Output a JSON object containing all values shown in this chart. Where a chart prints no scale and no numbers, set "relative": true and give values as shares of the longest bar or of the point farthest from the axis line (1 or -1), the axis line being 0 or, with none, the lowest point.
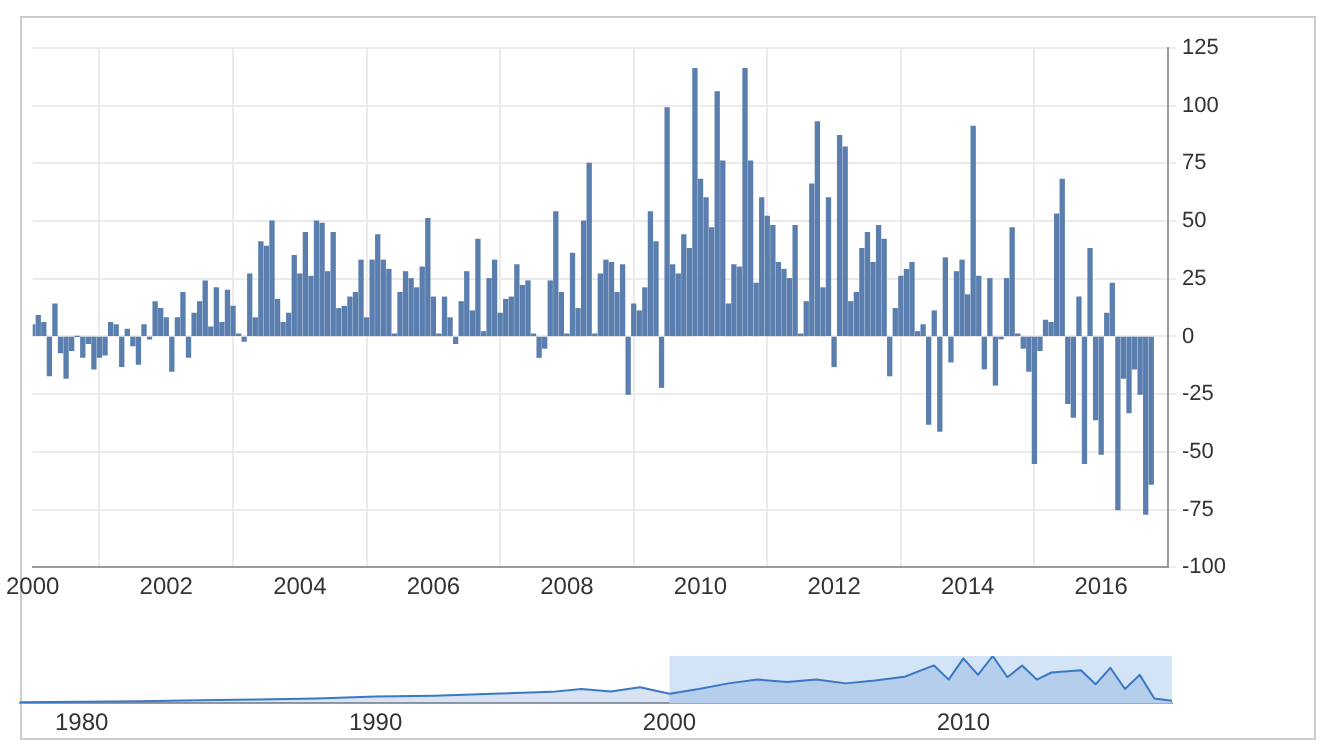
{
  "chart_data": [
    {
      "type": "bar",
      "color": "#5a7fae",
      "grid": true,
      "xlim": [
        "2000-01",
        "2017-01"
      ],
      "xticks": [
        "2000",
        "2002",
        "2004",
        "2006",
        "2008",
        "2010",
        "2012",
        "2014",
        "2016"
      ],
      "ylim": [
        -100,
        125
      ],
      "yticks": [
        -100,
        -75,
        -50,
        -25,
        0,
        25,
        50,
        75,
        100,
        125
      ],
      "x": [
        "2000-01",
        "2000-02",
        "2000-03",
        "2000-04",
        "2000-05",
        "2000-06",
        "2000-07",
        "2000-08",
        "2000-09",
        "2000-10",
        "2000-11",
        "2000-12",
        "2001-01",
        "2001-02",
        "2001-03",
        "2001-04",
        "2001-05",
        "2001-06",
        "2001-07",
        "2001-08",
        "2001-09",
        "2001-10",
        "2001-11",
        "2001-12",
        "2002-01",
        "2002-02",
        "2002-03",
        "2002-04",
        "2002-05",
        "2002-06",
        "2002-07",
        "2002-08",
        "2002-09",
        "2002-10",
        "2002-11",
        "2002-12",
        "2003-01",
        "2003-02",
        "2003-03",
        "2003-04",
        "2003-05",
        "2003-06",
        "2003-07",
        "2003-08",
        "2003-09",
        "2003-10",
        "2003-11",
        "2003-12",
        "2004-01",
        "2004-02",
        "2004-03",
        "2004-04",
        "2004-05",
        "2004-06",
        "2004-07",
        "2004-08",
        "2004-09",
        "2004-10",
        "2004-11",
        "2004-12",
        "2005-01",
        "2005-02",
        "2005-03",
        "2005-04",
        "2005-05",
        "2005-06",
        "2005-07",
        "2005-08",
        "2005-09",
        "2005-10",
        "2005-11",
        "2005-12",
        "2006-01",
        "2006-02",
        "2006-03",
        "2006-04",
        "2006-05",
        "2006-06",
        "2006-07",
        "2006-08",
        "2006-09",
        "2006-10",
        "2006-11",
        "2006-12",
        "2007-01",
        "2007-02",
        "2007-03",
        "2007-04",
        "2007-05",
        "2007-06",
        "2007-07",
        "2007-08",
        "2007-09",
        "2007-10",
        "2007-11",
        "2007-12",
        "2008-01",
        "2008-02",
        "2008-03",
        "2008-04",
        "2008-05",
        "2008-06",
        "2008-07",
        "2008-08",
        "2008-09",
        "2008-10",
        "2008-11",
        "2008-12",
        "2009-01",
        "2009-02",
        "2009-03",
        "2009-04",
        "2009-05",
        "2009-06",
        "2009-07",
        "2009-08",
        "2009-09",
        "2009-10",
        "2009-11",
        "2009-12",
        "2010-01",
        "2010-02",
        "2010-03",
        "2010-04",
        "2010-05",
        "2010-06",
        "2010-07",
        "2010-08",
        "2010-09",
        "2010-10",
        "2010-11",
        "2010-12",
        "2011-01",
        "2011-02",
        "2011-03",
        "2011-04",
        "2011-05",
        "2011-06",
        "2011-07",
        "2011-08",
        "2011-09",
        "2011-10",
        "2011-11",
        "2011-12",
        "2012-01",
        "2012-02",
        "2012-03",
        "2012-04",
        "2012-05",
        "2012-06",
        "2012-07",
        "2012-08",
        "2012-09",
        "2012-10",
        "2012-11",
        "2012-12",
        "2013-01",
        "2013-02",
        "2013-03",
        "2013-04",
        "2013-05",
        "2013-06",
        "2013-07",
        "2013-08",
        "2013-09",
        "2013-10",
        "2013-11",
        "2013-12",
        "2014-01",
        "2014-02",
        "2014-03",
        "2014-04",
        "2014-05",
        "2014-06",
        "2014-07",
        "2014-08",
        "2014-09",
        "2014-10",
        "2014-11",
        "2014-12",
        "2015-01",
        "2015-02",
        "2015-03",
        "2015-04",
        "2015-05",
        "2015-06",
        "2015-07",
        "2015-08",
        "2015-09",
        "2015-10",
        "2015-11",
        "2015-12",
        "2016-01",
        "2016-02",
        "2016-03",
        "2016-04",
        "2016-05",
        "2016-06",
        "2016-07",
        "2016-08",
        "2016-09",
        "2016-10"
      ],
      "values": [
        5,
        9,
        6,
        -17,
        14,
        -7,
        -18,
        -6,
        0,
        -9,
        -3,
        -14,
        -9,
        -8,
        6,
        5,
        -13,
        3,
        -4,
        -12,
        5,
        -1,
        15,
        12,
        8,
        -15,
        8,
        19,
        -9,
        10,
        15,
        24,
        4,
        21,
        6,
        20,
        13,
        1,
        -2,
        27,
        8,
        41,
        39,
        50,
        16,
        6,
        10,
        35,
        27,
        45,
        26,
        50,
        49,
        28,
        45,
        12,
        13,
        17,
        19,
        33,
        8,
        33,
        44,
        33,
        29,
        1,
        19,
        28,
        25,
        21,
        30,
        51,
        17,
        1,
        17,
        8,
        -3,
        15,
        28,
        11,
        42,
        2,
        25,
        33,
        10,
        16,
        17,
        31,
        22,
        24,
        1,
        -9,
        -5,
        24,
        54,
        19,
        1,
        36,
        12,
        50,
        75,
        1,
        27,
        33,
        32,
        19,
        31,
        -25,
        14,
        11,
        21,
        54,
        41,
        -22,
        99,
        31,
        27,
        44,
        38,
        116,
        68,
        60,
        47,
        106,
        76,
        14,
        31,
        30,
        116,
        76,
        23,
        60,
        52,
        48,
        32,
        29,
        25,
        48,
        1,
        15,
        66,
        93,
        21,
        60,
        -13,
        87,
        82,
        15,
        19,
        38,
        45,
        32,
        48,
        42,
        -17,
        12,
        26,
        29,
        32,
        2,
        5,
        -38,
        11,
        -41,
        34,
        -11,
        28,
        33,
        18,
        91,
        26,
        -14,
        25,
        -21,
        -1,
        25,
        47,
        1,
        -5,
        -15,
        -55,
        -6,
        7,
        6,
        53,
        68,
        -29,
        -35,
        17,
        -55,
        38,
        -36,
        -51,
        10,
        23,
        -75,
        -18,
        -33,
        -14,
        -25,
        -77,
        -64
      ]
    },
    {
      "type": "area",
      "relative": true,
      "color": "#3a78c3",
      "xlim": [
        1977.9,
        2017.1
      ],
      "xticks": [
        1980,
        1990,
        2000,
        2010
      ],
      "bands": [
        {
          "axis": "x",
          "from": 2000,
          "to": 2017.1,
          "color": "#d4e4f7"
        }
      ],
      "x": [
        1977.9,
        1980,
        1982,
        1984,
        1986,
        1988,
        1990,
        1992,
        1994,
        1996,
        1997,
        1998,
        1999,
        2000,
        2001,
        2002,
        2003,
        2004,
        2005,
        2006,
        2007,
        2008,
        2009,
        2009.5,
        2010,
        2010.5,
        2011,
        2011.5,
        2012,
        2012.5,
        2013,
        2014,
        2014.5,
        2015,
        2015.5,
        2016,
        2016.5,
        2017.1
      ],
      "values": [
        0.02,
        0.03,
        0.04,
        0.06,
        0.08,
        0.1,
        0.14,
        0.16,
        0.2,
        0.24,
        0.3,
        0.25,
        0.34,
        0.2,
        0.3,
        0.42,
        0.5,
        0.45,
        0.5,
        0.42,
        0.48,
        0.56,
        0.8,
        0.5,
        0.95,
        0.6,
        1,
        0.55,
        0.8,
        0.5,
        0.65,
        0.7,
        0.4,
        0.75,
        0.3,
        0.6,
        0.1,
        0.05
      ]
    }
  ]
}
